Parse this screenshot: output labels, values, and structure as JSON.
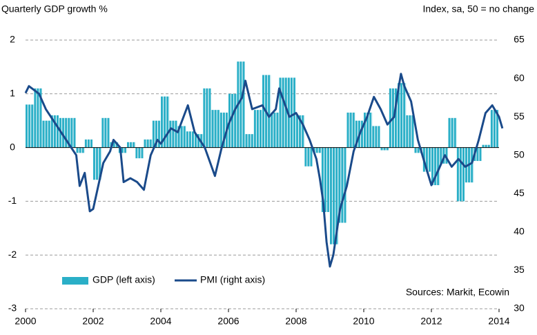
{
  "chart_data": {
    "type": "bar-line",
    "title": "Quarterly GDP growth %",
    "subtitle": "Index, sa, 50 = no change",
    "annotation": "Sources: Markit, Ecowin",
    "xlim": [
      2000,
      2014
    ],
    "xticks": [
      2000,
      2002,
      2004,
      2006,
      2008,
      2010,
      2012,
      2014
    ],
    "ylim": [
      -3,
      2
    ],
    "yticks": [
      -3,
      -2,
      -1,
      0,
      1,
      2
    ],
    "y2lim": [
      30,
      65
    ],
    "y2ticks": [
      30,
      35,
      40,
      45,
      50,
      55,
      60,
      65
    ],
    "grid": true,
    "series": [
      {
        "name": "GDP (left axis)",
        "type": "bar",
        "color": "#2aafc7",
        "x": [
          2000,
          2000.25,
          2000.5,
          2000.75,
          2001,
          2001.25,
          2001.5,
          2001.75,
          2002,
          2002.25,
          2002.5,
          2002.75,
          2003,
          2003.25,
          2003.5,
          2003.75,
          2004,
          2004.25,
          2004.5,
          2004.75,
          2005,
          2005.25,
          2005.5,
          2005.75,
          2006,
          2006.25,
          2006.5,
          2006.75,
          2007,
          2007.25,
          2007.5,
          2007.75,
          2008,
          2008.25,
          2008.5,
          2008.75,
          2009,
          2009.25,
          2009.5,
          2009.75,
          2010,
          2010.25,
          2010.5,
          2010.75,
          2011,
          2011.25,
          2011.5,
          2011.75,
          2012,
          2012.25,
          2012.5,
          2012.75,
          2013,
          2013.25,
          2013.5,
          2013.75
        ],
        "values": [
          0.8,
          1.1,
          0.5,
          0.6,
          0.55,
          0.55,
          -0.1,
          0.15,
          -0.6,
          0.55,
          0.1,
          -0.1,
          0.1,
          -0.2,
          0.15,
          0.5,
          0.95,
          0.5,
          0.4,
          0.3,
          0.25,
          1.1,
          0.7,
          0.65,
          1.0,
          1.6,
          0.25,
          0.7,
          1.35,
          0.65,
          1.3,
          1.3,
          0.6,
          -0.35,
          -0.1,
          -1.2,
          -1.8,
          -1.4,
          0.65,
          0.5,
          0.65,
          0.4,
          -0.05,
          1.1,
          1.2,
          0.6,
          -0.1,
          -0.45,
          -0.7,
          -0.3,
          0.55,
          -1.0,
          -0.65,
          -0.25,
          0.05,
          0.7
        ]
      },
      {
        "name": "PMI (right axis)",
        "type": "line",
        "axis": "y2",
        "color": "#1a4a8a",
        "x": [
          2000.0,
          2000.1,
          2000.4,
          2000.6,
          2000.9,
          2001.2,
          2001.5,
          2001.6,
          2001.75,
          2001.9,
          2002.0,
          2002.3,
          2002.5,
          2002.6,
          2002.8,
          2002.9,
          2003.1,
          2003.3,
          2003.5,
          2003.7,
          2003.9,
          2004.0,
          2004.3,
          2004.5,
          2004.8,
          2005.0,
          2005.3,
          2005.6,
          2005.8,
          2006.0,
          2006.2,
          2006.4,
          2006.5,
          2006.7,
          2007.0,
          2007.2,
          2007.4,
          2007.5,
          2007.8,
          2008.0,
          2008.2,
          2008.4,
          2008.6,
          2008.7,
          2008.8,
          2008.9,
          2009.0,
          2009.1,
          2009.3,
          2009.5,
          2009.7,
          2009.9,
          2010.1,
          2010.3,
          2010.5,
          2010.7,
          2010.9,
          2011.0,
          2011.1,
          2011.2,
          2011.4,
          2011.6,
          2011.8,
          2012.0,
          2012.2,
          2012.4,
          2012.6,
          2012.8,
          2013.0,
          2013.2,
          2013.4,
          2013.6,
          2013.8,
          2014.0,
          2014.1
        ],
        "values": [
          58.1,
          59,
          58,
          56,
          54,
          52,
          50,
          46,
          47.7,
          42.7,
          43,
          49,
          50.5,
          52,
          51,
          46.5,
          47,
          46.5,
          45.5,
          50,
          52,
          51.5,
          53.5,
          53,
          56.5,
          53,
          51,
          47.3,
          51,
          54,
          56,
          57.5,
          59.7,
          56,
          56.5,
          55,
          56,
          58.7,
          55,
          55.5,
          54,
          52,
          49.5,
          47,
          44,
          38.7,
          35.5,
          37,
          43,
          46,
          50.5,
          53,
          55,
          57.6,
          56,
          54,
          55,
          58,
          60.6,
          59,
          57,
          52,
          49,
          46.1,
          48,
          50,
          48.5,
          49.5,
          48.5,
          49,
          52,
          55.5,
          56.5,
          55,
          53.5
        ]
      }
    ]
  }
}
